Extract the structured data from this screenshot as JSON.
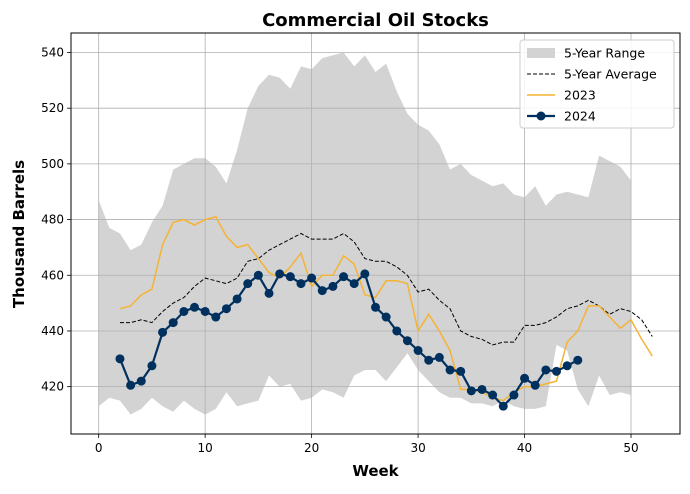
{
  "chart_data": {
    "type": "line",
    "title": "Commercial Oil Stocks",
    "xlabel": "Week",
    "ylabel": "Thousand Barrels",
    "xlim": [
      -2.6,
      54.6
    ],
    "ylim": [
      403,
      547
    ],
    "xticks": [
      0,
      10,
      20,
      30,
      40,
      50
    ],
    "yticks": [
      420,
      440,
      460,
      480,
      500,
      520,
      540
    ],
    "grid": true,
    "legend_position": "top-right",
    "range": {
      "name": "5-Year Range",
      "color": "#d3d3d3",
      "x": [
        0,
        1,
        2,
        3,
        4,
        5,
        6,
        7,
        8,
        9,
        10,
        11,
        12,
        13,
        14,
        15,
        16,
        17,
        18,
        19,
        20,
        21,
        22,
        23,
        24,
        25,
        26,
        27,
        28,
        29,
        30,
        31,
        32,
        33,
        34,
        35,
        36,
        37,
        38,
        39,
        40,
        41,
        42,
        43,
        44,
        45,
        46,
        47,
        48,
        49,
        50
      ],
      "upper": [
        487,
        477,
        475,
        469,
        471,
        479,
        485,
        498,
        500,
        502,
        502,
        499,
        493,
        505,
        520,
        528,
        532,
        531,
        527,
        535,
        534,
        538,
        539,
        540,
        535,
        539,
        533,
        536,
        526,
        518,
        514,
        512,
        507,
        498,
        500,
        496,
        494,
        492,
        493,
        489,
        488,
        492,
        485,
        489,
        490,
        489,
        488,
        503,
        501,
        499,
        494
      ],
      "lower": [
        413,
        416,
        415,
        410,
        412,
        416,
        413,
        411,
        415,
        412,
        410,
        412,
        418,
        413,
        414,
        415,
        424,
        420,
        421,
        415,
        416,
        419,
        418,
        416,
        424,
        426,
        426,
        422,
        427,
        432,
        426,
        422,
        418,
        416,
        416,
        414,
        414,
        413,
        415,
        413,
        412,
        412,
        413,
        435,
        433,
        419,
        413,
        424,
        417,
        418,
        417
      ]
    },
    "series": [
      {
        "name": "5-Year Average",
        "color": "#000000",
        "style": "dashed",
        "x": [
          2,
          3,
          4,
          5,
          6,
          7,
          8,
          9,
          10,
          11,
          12,
          13,
          14,
          15,
          16,
          17,
          18,
          19,
          20,
          21,
          22,
          23,
          24,
          25,
          26,
          27,
          28,
          29,
          30,
          31,
          32,
          33,
          34,
          35,
          36,
          37,
          38,
          39,
          40,
          41,
          42,
          43,
          44,
          45,
          46,
          47,
          48,
          49,
          50,
          51,
          52
        ],
        "values": [
          443,
          443,
          444,
          443,
          447,
          450,
          452,
          456,
          459,
          458,
          457,
          459,
          465,
          466,
          469,
          471,
          473,
          475,
          473,
          473,
          473,
          475,
          472,
          466,
          465,
          465,
          463,
          460,
          454,
          455,
          451,
          448,
          440,
          438,
          437,
          435,
          436,
          436,
          442,
          442,
          443,
          445,
          448,
          449,
          451,
          449,
          446,
          448,
          447,
          444,
          438
        ]
      },
      {
        "name": "2023",
        "color": "#f5b335",
        "style": "solid",
        "x": [
          2,
          3,
          4,
          5,
          6,
          7,
          8,
          9,
          10,
          11,
          12,
          13,
          14,
          15,
          16,
          17,
          18,
          19,
          20,
          21,
          22,
          23,
          24,
          25,
          26,
          27,
          28,
          29,
          30,
          31,
          32,
          33,
          34,
          35,
          36,
          37,
          38,
          39,
          40,
          41,
          42,
          43,
          44,
          45,
          46,
          47,
          48,
          49,
          50,
          51,
          52
        ],
        "values": [
          448,
          449,
          453,
          455,
          471,
          479,
          480,
          478,
          480,
          481,
          474,
          470,
          471,
          466,
          461,
          459,
          463,
          468,
          456,
          460,
          460,
          467,
          464,
          453,
          452,
          458,
          458,
          457,
          440,
          446,
          440,
          433,
          419,
          419,
          418,
          416,
          415,
          418,
          420,
          420,
          421,
          422,
          436,
          440,
          449,
          449,
          445,
          441,
          444,
          437,
          431
        ]
      },
      {
        "name": "2024",
        "color": "#00305e",
        "style": "solid-marker",
        "x": [
          2,
          3,
          4,
          5,
          6,
          7,
          8,
          9,
          10,
          11,
          12,
          13,
          14,
          15,
          16,
          17,
          18,
          19,
          20,
          21,
          22,
          23,
          24,
          25,
          26,
          27,
          28,
          29,
          30,
          31,
          32,
          33,
          34,
          35,
          36,
          37,
          38,
          39,
          40,
          41,
          42,
          43,
          44,
          45
        ],
        "values": [
          430,
          420.5,
          422,
          427.5,
          439.5,
          443,
          447,
          448.5,
          447,
          445,
          448,
          451.5,
          457,
          460,
          453.5,
          460.5,
          459.5,
          457,
          459,
          454.5,
          456,
          459.5,
          457,
          460.5,
          448.5,
          445,
          440,
          436.5,
          433,
          429.5,
          430.5,
          426,
          425.5,
          418.5,
          419,
          417,
          413,
          417,
          423,
          420.5,
          426,
          425.5,
          427.5,
          429.5
        ]
      }
    ]
  }
}
